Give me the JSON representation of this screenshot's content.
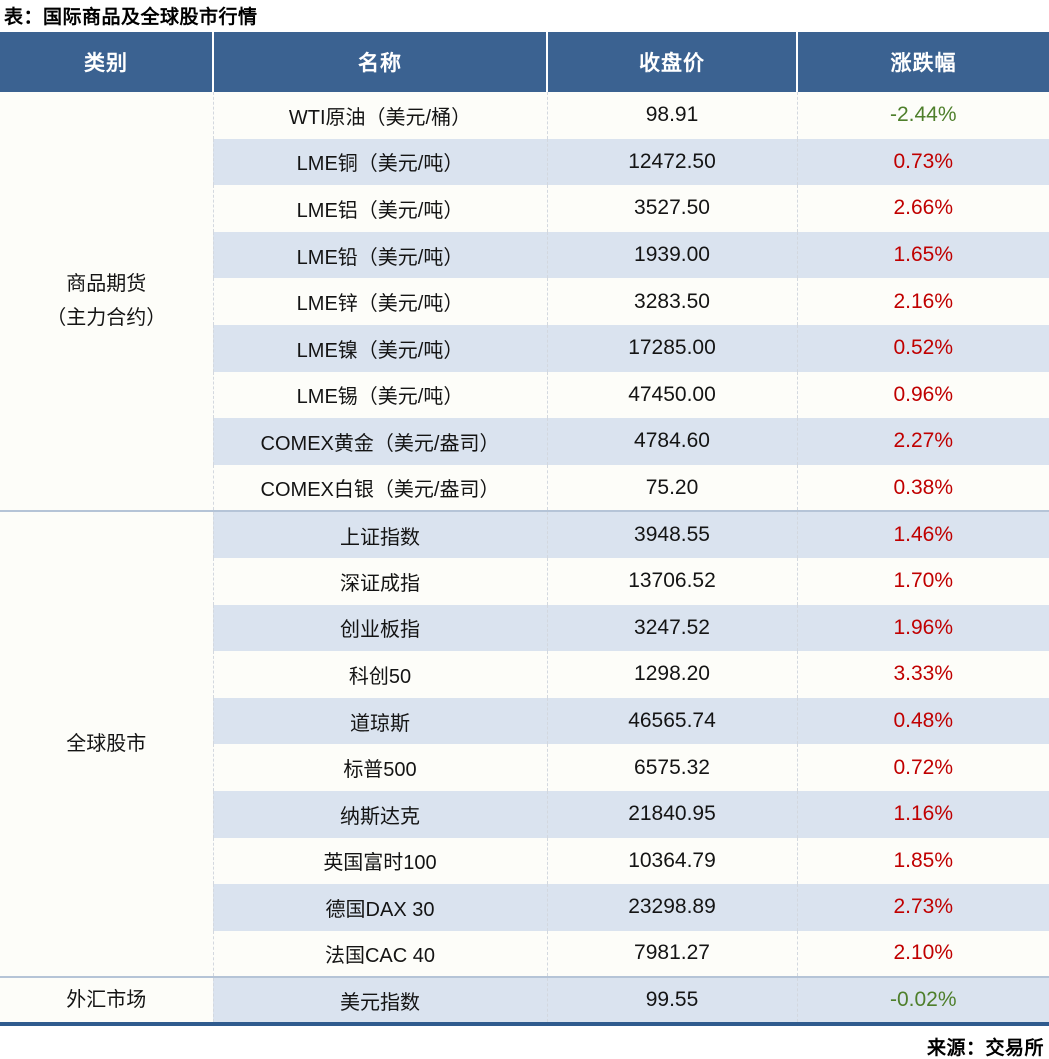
{
  "title": "表：国际商品及全球股市行情",
  "footer": "来源：交易所",
  "colors": {
    "header_bg": "#3B6291",
    "shaded_row": "#DAE3EF",
    "up_red": "#C00000",
    "down_green": "#4E7F2B",
    "bottom_border": "#2F5B8E"
  },
  "table": {
    "headers": {
      "category": "类别",
      "name": "名称",
      "close": "收盘价",
      "change": "涨跌幅"
    },
    "sections": [
      {
        "category_lines": [
          "商品期货",
          "（主力合约）"
        ],
        "rows": [
          {
            "name": "WTI原油（美元/桶）",
            "close": "98.91",
            "change": "-2.44%"
          },
          {
            "name": "LME铜（美元/吨）",
            "close": "12472.50",
            "change": "0.73%"
          },
          {
            "name": "LME铝（美元/吨）",
            "close": "3527.50",
            "change": "2.66%"
          },
          {
            "name": "LME铅（美元/吨）",
            "close": "1939.00",
            "change": "1.65%"
          },
          {
            "name": "LME锌（美元/吨）",
            "close": "3283.50",
            "change": "2.16%"
          },
          {
            "name": "LME镍（美元/吨）",
            "close": "17285.00",
            "change": "0.52%"
          },
          {
            "name": "LME锡（美元/吨）",
            "close": "47450.00",
            "change": "0.96%"
          },
          {
            "name": "COMEX黄金（美元/盎司）",
            "close": "4784.60",
            "change": "2.27%"
          },
          {
            "name": "COMEX白银（美元/盎司）",
            "close": "75.20",
            "change": "0.38%"
          }
        ]
      },
      {
        "category_lines": [
          "全球股市"
        ],
        "rows": [
          {
            "name": "上证指数",
            "close": "3948.55",
            "change": "1.46%"
          },
          {
            "name": "深证成指",
            "close": "13706.52",
            "change": "1.70%"
          },
          {
            "name": "创业板指",
            "close": "3247.52",
            "change": "1.96%"
          },
          {
            "name": "科创50",
            "close": "1298.20",
            "change": "3.33%"
          },
          {
            "name": "道琼斯",
            "close": "46565.74",
            "change": "0.48%"
          },
          {
            "name": "标普500",
            "close": "6575.32",
            "change": "0.72%"
          },
          {
            "name": "纳斯达克",
            "close": "21840.95",
            "change": "1.16%"
          },
          {
            "name": "英国富时100",
            "close": "10364.79",
            "change": "1.85%"
          },
          {
            "name": "德国DAX 30",
            "close": "23298.89",
            "change": "2.73%"
          },
          {
            "name": "法国CAC 40",
            "close": "7981.27",
            "change": "2.10%"
          }
        ]
      },
      {
        "category_lines": [
          "外汇市场"
        ],
        "rows": [
          {
            "name": "美元指数",
            "close": "99.55",
            "change": "-0.02%"
          }
        ]
      }
    ]
  }
}
